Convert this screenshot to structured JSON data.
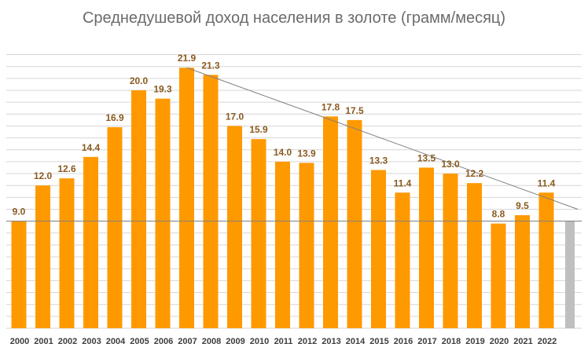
{
  "chart_data": {
    "type": "bar",
    "title": "Среднедушевой доход населения в золоте (грамм/месяц)",
    "xlabel": "",
    "ylabel": "",
    "ylim": [
      0,
      23
    ],
    "grid": true,
    "categories": [
      "2000",
      "2001",
      "2002",
      "2003",
      "2004",
      "2005",
      "2006",
      "2007",
      "2008",
      "2009",
      "2010",
      "2011",
      "2012",
      "2013",
      "2014",
      "2015",
      "2016",
      "2017",
      "2018",
      "2019",
      "2020",
      "2021",
      "2022"
    ],
    "values": [
      9.0,
      12.0,
      12.6,
      14.4,
      16.9,
      20.0,
      19.3,
      21.9,
      21.3,
      17.0,
      15.9,
      14.0,
      13.9,
      17.8,
      17.5,
      13.3,
      11.4,
      13.5,
      13.0,
      12.2,
      8.8,
      9.5,
      11.4
    ],
    "labels": [
      "9.0",
      "12.0",
      "12.6",
      "14.4",
      "16.9",
      "20.0",
      "19.3",
      "21.9",
      "21.3",
      "17.0",
      "15.9",
      "14.0",
      "13.9",
      "17.8",
      "17.5",
      "13.3",
      "11.4",
      "13.5",
      "13.0",
      "12.2",
      "8.8",
      "9.5",
      "11.4"
    ],
    "extra_bar": {
      "value": 9.0,
      "color": "#bfbfbf"
    },
    "reference_line": {
      "value": 9.0,
      "color": "#808080"
    },
    "trend_line": {
      "from_category": "2007",
      "from_value": 21.9,
      "to_value_at_end": 10.0,
      "color": "#808080"
    },
    "colors": {
      "bar": "#ff9900",
      "label": "#8a5a1f",
      "axis_label": "#3d3d3d",
      "title": "#6b6b6b",
      "grid": "#d6d6d6"
    }
  }
}
